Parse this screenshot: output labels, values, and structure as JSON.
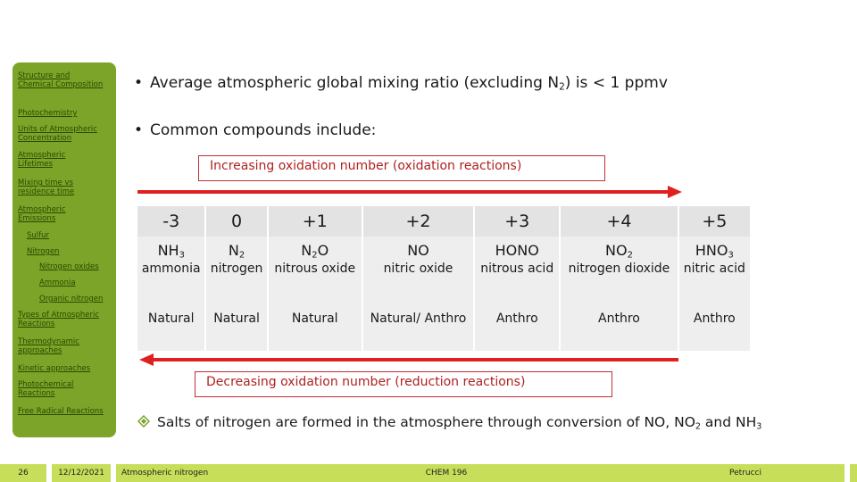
{
  "sidebar": {
    "items": [
      "Structure and Chemical Composition",
      "Photochemistry",
      "Units of Atmospheric Concentration",
      "Atmospheric Lifetimes",
      "Mixing time vs residence time",
      "Atmospheric Emissions",
      "Sulfur",
      "Nitrogen",
      "Nitrogen oxides",
      "Ammonia",
      "Organic nitrogen",
      "Types of Atmospheric Reactions",
      "Thermodynamic approaches",
      "Kinetic approaches",
      "Photochemical Reactions",
      "Free Radical Reactions"
    ]
  },
  "bullets": {
    "b1_pre": "Average atmospheric global mixing ratio (excluding N",
    "b1_sub": "2",
    "b1_post": ") is < 1 ppmv",
    "b2": "Common compounds include:"
  },
  "labels": {
    "increasing": "Increasing oxidation number (oxidation reactions)",
    "decreasing": "Decreasing oxidation number (reduction reactions)"
  },
  "table": {
    "columns": [
      {
        "ox": "-3",
        "f_pre": "NH",
        "f_sub": "3",
        "f_post": "",
        "name": "ammonia",
        "source": "Natural"
      },
      {
        "ox": "0",
        "f_pre": "N",
        "f_sub": "2",
        "f_post": "",
        "name": "nitrogen",
        "source": "Natural"
      },
      {
        "ox": "+1",
        "f_pre": "N",
        "f_sub": "2",
        "f_post": "O",
        "name": "nitrous oxide",
        "source": "Natural"
      },
      {
        "ox": "+2",
        "f_pre": "NO",
        "f_sub": "",
        "f_post": "",
        "name": "nitric oxide",
        "source": "Natural/ Anthro"
      },
      {
        "ox": "+3",
        "f_pre": "HONO",
        "f_sub": "",
        "f_post": "",
        "name": "nitrous acid",
        "source": "Anthro"
      },
      {
        "ox": "+4",
        "f_pre": "NO",
        "f_sub": "2",
        "f_post": "",
        "name": "nitrogen dioxide",
        "source": "Anthro"
      },
      {
        "ox": "+5",
        "f_pre": "HNO",
        "f_sub": "3",
        "f_post": "",
        "name": "nitric acid",
        "source": "Anthro"
      }
    ]
  },
  "salts": {
    "pre": "Salts of nitrogen are formed in the atmosphere through conversion of NO, NO",
    "sub1": "2",
    "mid": " and NH",
    "sub2": "3"
  },
  "footer": {
    "page": "26",
    "date": "12/12/2021",
    "topic": "Atmospheric nitrogen",
    "course": "CHEM 196",
    "author": "Petrucci"
  },
  "colors": {
    "sidebar": "#7ba428",
    "footer": "#c7de5a",
    "arrow": "#e02020",
    "label_border": "#c03030"
  }
}
